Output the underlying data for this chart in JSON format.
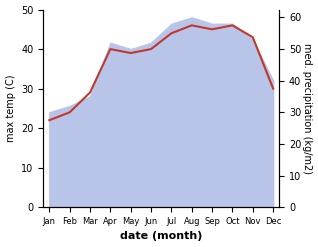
{
  "months": [
    "Jan",
    "Feb",
    "Mar",
    "Apr",
    "May",
    "Jun",
    "Jul",
    "Aug",
    "Sep",
    "Oct",
    "Nov",
    "Dec"
  ],
  "temperature": [
    22,
    24,
    29,
    40,
    39,
    40,
    44,
    46,
    45,
    46,
    43,
    30
  ],
  "precipitation": [
    30,
    32,
    35,
    52,
    50,
    52,
    58,
    60,
    58,
    58,
    53,
    40
  ],
  "temp_color": "#c0392b",
  "precip_fill_color": "#b8c4e8",
  "temp_ylim": [
    0,
    50
  ],
  "precip_ylim": [
    0,
    62.5
  ],
  "temp_yticks": [
    0,
    10,
    20,
    30,
    40,
    50
  ],
  "precip_yticks": [
    0,
    10,
    20,
    30,
    40,
    50,
    60
  ],
  "xlabel": "date (month)",
  "ylabel_left": "max temp (C)",
  "ylabel_right": "med. precipitation (kg/m2)",
  "bg_color": "#ffffff"
}
